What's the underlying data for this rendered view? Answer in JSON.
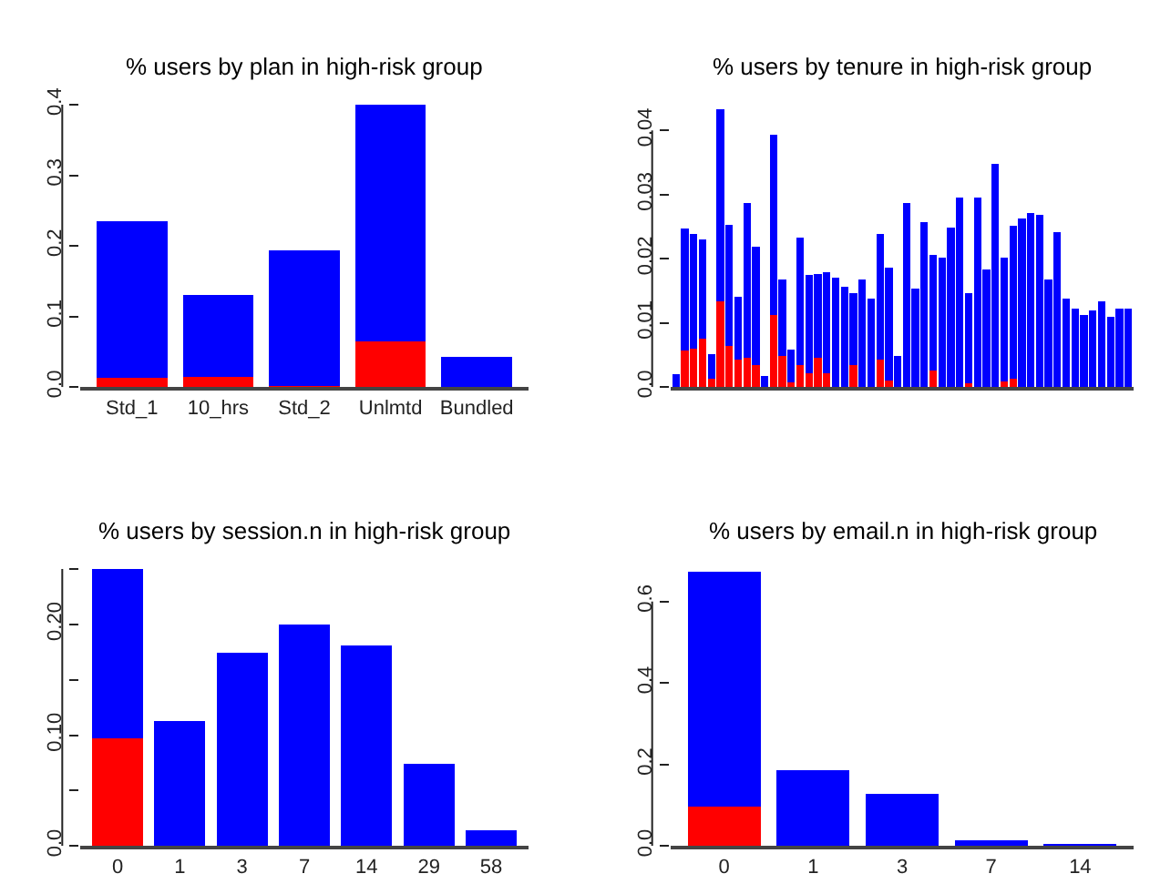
{
  "chart_data": [
    {
      "type": "bar",
      "title": "% users by plan in high-risk group",
      "categories": [
        "Std_1",
        "10_hrs",
        "Std_2",
        "Unlmtd",
        "Bundled"
      ],
      "stacked": true,
      "ylim": [
        0,
        0.4
      ],
      "yticks": [
        {
          "value": 0,
          "label": "0.0"
        },
        0.1,
        0.2,
        0.3,
        0.4
      ],
      "series": [
        {
          "color": "#ff0000",
          "values": [
            0.013,
            0.015,
            0.002,
            0.065,
            0
          ]
        },
        {
          "color": "#0000ff",
          "values": [
            0.222,
            0.116,
            0.192,
            0.335,
            0.043
          ]
        }
      ]
    },
    {
      "type": "bar",
      "title": "% users by tenure in high-risk group",
      "categories": [
        null,
        null,
        null,
        null,
        null,
        null,
        null,
        null,
        null,
        null,
        null,
        null,
        null,
        null,
        null,
        null,
        null,
        null,
        null,
        null,
        null,
        null,
        null,
        null,
        null,
        null,
        null,
        null,
        null,
        null,
        null,
        null,
        null,
        null,
        null,
        null,
        null,
        null,
        null,
        null,
        null,
        null,
        null,
        null,
        null,
        null,
        null,
        null,
        null,
        null,
        null,
        null
      ],
      "stacked": true,
      "ylim": [
        0,
        0.044
      ],
      "yticks": [
        {
          "value": 0,
          "label": "0.0"
        },
        0.01,
        0.02,
        0.03,
        0.04
      ],
      "tick_labels": "y",
      "series": [
        {
          "color": "#ff0000",
          "values": [
            0,
            0.0057,
            0.006,
            0.0075,
            0.0013,
            0.0134,
            0.0064,
            0.0043,
            0.0045,
            0.0034,
            0,
            0.0113,
            0.0049,
            0.0008,
            0.0034,
            0.0022,
            0.0045,
            0.0022,
            0,
            0,
            0.0034,
            0,
            0,
            0.0043,
            0.001,
            0,
            0,
            0,
            0,
            0.0026,
            0,
            0,
            0,
            0.0006,
            0,
            0,
            0,
            0.0009,
            0.0013,
            0,
            0,
            0,
            0,
            0,
            0,
            0,
            0,
            0,
            0,
            0,
            0,
            0
          ]
        },
        {
          "color": "#0000ff",
          "values": [
            0.002,
            0.019,
            0.0178,
            0.0155,
            0.0039,
            0.0299,
            0.0189,
            0.0098,
            0.0242,
            0.0185,
            0.0017,
            0.028,
            0.0119,
            0.005,
            0.0199,
            0.0152,
            0.0131,
            0.0157,
            0.0171,
            0.0156,
            0.0113,
            0.0168,
            0.0138,
            0.0196,
            0.0176,
            0.0049,
            0.0287,
            0.0154,
            0.0257,
            0.018,
            0.0201,
            0.0248,
            0.0295,
            0.0141,
            0.0295,
            0.0183,
            0.0348,
            0.0192,
            0.0238,
            0.0262,
            0.0271,
            0.0268,
            0.0168,
            0.0242,
            0.0138,
            0.0122,
            0.0113,
            0.0119,
            0.0134,
            0.011,
            0.0122,
            0.0122
          ]
        }
      ]
    },
    {
      "type": "bar",
      "title": "% users by session.n in high-risk group",
      "categories": [
        "0",
        "1",
        "3",
        "7",
        "14",
        "29",
        "58"
      ],
      "stacked": true,
      "ylim": [
        0,
        0.25
      ],
      "yticks": [
        {
          "value": 0.0,
          "label": "0.0"
        },
        {
          "value": 0.05,
          "label": null
        },
        {
          "value": 0.1,
          "label": "0.10"
        },
        {
          "value": 0.15,
          "label": null
        },
        {
          "value": 0.2,
          "label": "0.20"
        },
        {
          "value": 0.25,
          "label": null
        }
      ],
      "series": [
        {
          "color": "#ff0000",
          "values": [
            0.097,
            0,
            0,
            0,
            0,
            0,
            0
          ]
        },
        {
          "color": "#0000ff",
          "values": [
            0.153,
            0.113,
            0.174,
            0.2,
            0.181,
            0.074,
            0.014
          ]
        }
      ]
    },
    {
      "type": "bar",
      "title": "% users by email.n in high-risk group",
      "categories": [
        "0",
        "1",
        "3",
        "7",
        "14"
      ],
      "stacked": true,
      "ylim": [
        0,
        0.68
      ],
      "yticks": [
        {
          "value": 0,
          "label": "0.0"
        },
        0.2,
        0.4,
        0.6
      ],
      "series": [
        {
          "color": "#ff0000",
          "values": [
            0.097,
            0,
            0,
            0,
            0
          ]
        },
        {
          "color": "#0000ff",
          "values": [
            0.575,
            0.185,
            0.127,
            0.014,
            0.002
          ]
        }
      ]
    }
  ]
}
